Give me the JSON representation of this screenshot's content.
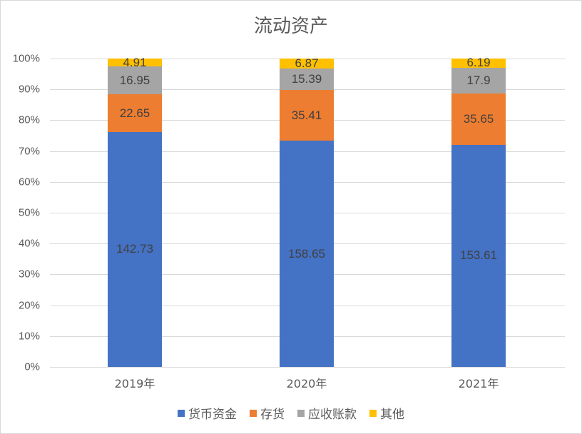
{
  "chart_data": {
    "type": "bar",
    "stacked": true,
    "normalized": "percent",
    "title": "流动资产",
    "xlabel": "",
    "ylabel": "",
    "categories": [
      "2019年",
      "2020年",
      "2021年"
    ],
    "series": [
      {
        "name": "货币资金",
        "color": "#4472c4",
        "values": [
          142.73,
          158.65,
          153.61
        ]
      },
      {
        "name": "存货",
        "color": "#ed7d31",
        "values": [
          22.65,
          35.41,
          35.65
        ]
      },
      {
        "name": "应收账款",
        "color": "#a5a5a5",
        "values": [
          16.95,
          15.39,
          17.9
        ]
      },
      {
        "name": "其他",
        "color": "#ffc000",
        "values": [
          4.91,
          6.87,
          6.19
        ]
      }
    ],
    "yticks": [
      "0%",
      "10%",
      "20%",
      "30%",
      "40%",
      "50%",
      "60%",
      "70%",
      "80%",
      "90%",
      "100%"
    ],
    "ylim": [
      0,
      1
    ],
    "grid": true,
    "legend_position": "bottom"
  }
}
